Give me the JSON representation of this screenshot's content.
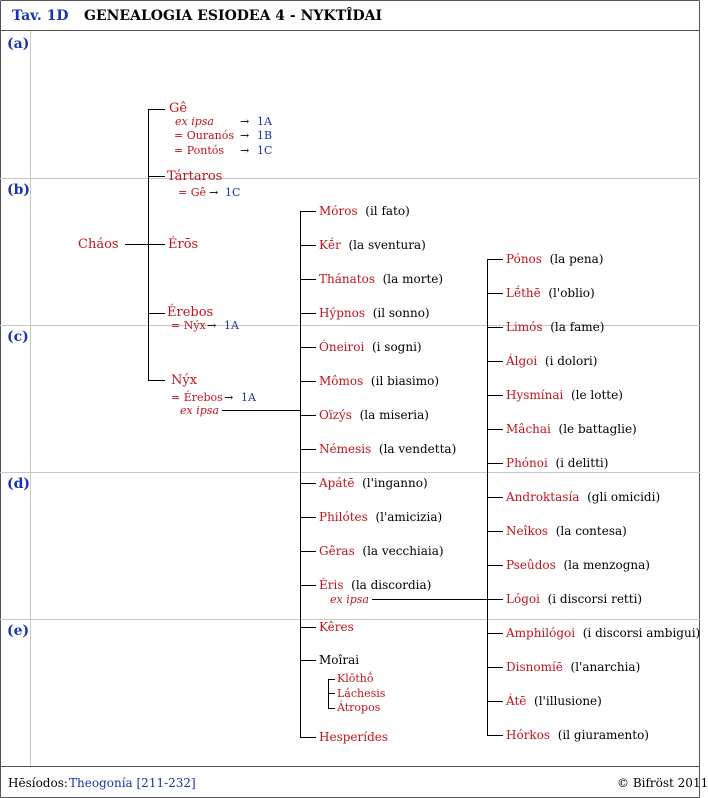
{
  "header": {
    "tav": "Tav. 1D",
    "title": "GENEALOGIA ESIODEA 4 - NYKTÎDAI"
  },
  "sections": [
    "(a)",
    "(b)",
    "(c)",
    "(d)",
    "(e)"
  ],
  "root": "Cháos",
  "first_gen": {
    "ge": {
      "name": "Gê",
      "ex_ipsa": "ex ipsa",
      "spouse1": "= Ouranós",
      "spouse2": "= Pontós",
      "ref_ex": "1A",
      "ref1": "1B",
      "ref2": "1C",
      "arrow": "→"
    },
    "tartaros": {
      "name": "Tártaros",
      "spouse": "= Gê",
      "ref": "1C"
    },
    "eros": {
      "name": "Érōs"
    },
    "erebos": {
      "name": "Érebos",
      "spouse": "= Nýx",
      "ref": "1A"
    },
    "nyx": {
      "name": "Nýx",
      "spouse": "= Érebos",
      "ref": "1A",
      "ex_ipsa": "ex ipsa"
    }
  },
  "nyx_children": [
    {
      "name": "Móros",
      "gloss": "(il fato)"
    },
    {
      "name": "Kḗr",
      "gloss": "(la sventura)"
    },
    {
      "name": "Thánatos",
      "gloss": "(la morte)"
    },
    {
      "name": "Hýpnos",
      "gloss": "(il sonno)"
    },
    {
      "name": "Óneiroi",
      "gloss": "(i sogni)"
    },
    {
      "name": "Mômos",
      "gloss": "(il biasimo)"
    },
    {
      "name": "Oïzýs",
      "gloss": "(la miseria)"
    },
    {
      "name": "Némesis",
      "gloss": "(la vendetta)"
    },
    {
      "name": "Apátē",
      "gloss": "(l'inganno)"
    },
    {
      "name": "Philótes",
      "gloss": "(l'amicizia)"
    },
    {
      "name": "Gêras",
      "gloss": "(la vecchiaia)"
    },
    {
      "name": "Éris",
      "gloss": "(la discordia)"
    },
    {
      "name": "Kêres",
      "gloss": ""
    },
    {
      "name": "Moîrai",
      "gloss": ""
    },
    {
      "name": "Hesperídes",
      "gloss": ""
    }
  ],
  "eris_ex_ipsa": "ex ipsa",
  "moirai": [
    "Klōthṓ",
    "Láchesis",
    "Átropos"
  ],
  "eris_children": [
    {
      "name": "Pónos",
      "gloss": "(la pena)"
    },
    {
      "name": "Lḗthē",
      "gloss": "(l'oblio)"
    },
    {
      "name": "Limós",
      "gloss": "(la fame)"
    },
    {
      "name": "Álgoi",
      "gloss": "(i dolori)"
    },
    {
      "name": "Hysmínai",
      "gloss": "(le lotte)"
    },
    {
      "name": "Mâchai",
      "gloss": "(le battaglie)"
    },
    {
      "name": "Phónoi",
      "gloss": "(i delitti)"
    },
    {
      "name": "Androktasía",
      "gloss": "(gli omicidi)"
    },
    {
      "name": "Neîkos",
      "gloss": "(la contesa)"
    },
    {
      "name": "Pseûdos",
      "gloss": "(la menzogna)"
    },
    {
      "name": "Lógoi",
      "gloss": "(i discorsi retti)"
    },
    {
      "name": "Amphilógoi",
      "gloss": "(i discorsi ambigui)"
    },
    {
      "name": "Disnomíē",
      "gloss": "(l'anarchia)"
    },
    {
      "name": "Átē",
      "gloss": "(l'illusione)"
    },
    {
      "name": "Hórkos",
      "gloss": "(il giuramento)"
    }
  ],
  "footer": {
    "author": "Hēsíodos:",
    "source": "Theogonía [211-232]",
    "copyright": "© Bifröst 2011"
  },
  "colors": {
    "name": "#c0141c",
    "reference": "#1a33b0",
    "grid": "#c8c8c8"
  }
}
